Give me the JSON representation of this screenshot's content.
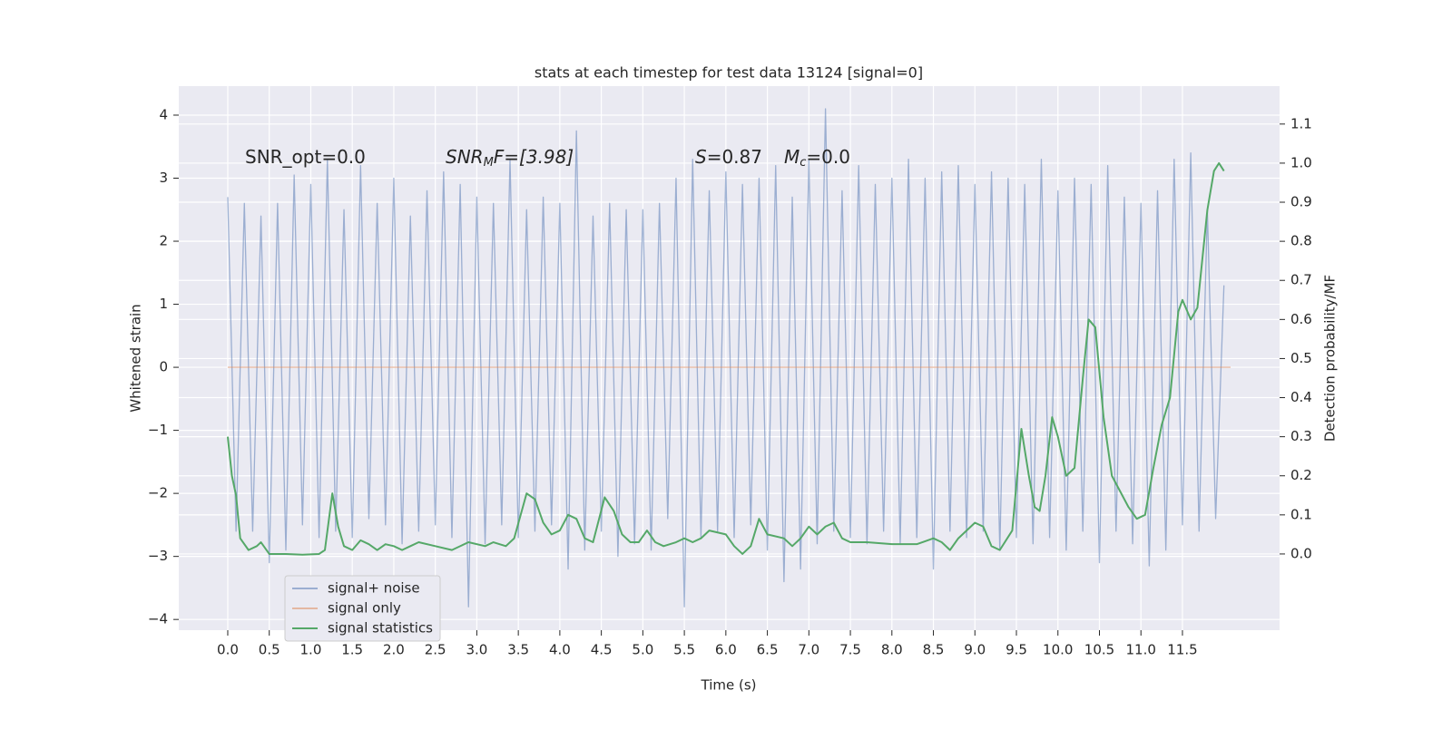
{
  "chart_data": {
    "type": "line",
    "title": "stats at each timestep for test data 13124 [signal=0]",
    "xlabel": "Time (s)",
    "ylabel": "Whitened strain",
    "y2label": "Detection probability/MF",
    "annotations": [
      [
        "SNR_opt=0.0"
      ],
      [
        "SNR",
        "M",
        "F=[3.98]"
      ],
      [
        "S",
        "=0.87",
        "M",
        "c",
        "=0.0"
      ]
    ],
    "xlim": [
      -0.59,
      12.67
    ],
    "ylim": [
      -4.17,
      4.46
    ],
    "y2lim": [
      -0.195,
      1.197
    ],
    "xticks": [
      {
        "value": 0,
        "label": "0.0"
      },
      {
        "value": 0.5,
        "label": "0.5"
      },
      {
        "value": 1,
        "label": "1.0"
      },
      {
        "value": 1.5,
        "label": "1.5"
      },
      {
        "value": 2,
        "label": "2.0"
      },
      {
        "value": 2.5,
        "label": "2.5"
      },
      {
        "value": 3,
        "label": "3.0"
      },
      {
        "value": 3.5,
        "label": "3.5"
      },
      {
        "value": 4,
        "label": "4.0"
      },
      {
        "value": 4.5,
        "label": "4.5"
      },
      {
        "value": 5,
        "label": "5.0"
      },
      {
        "value": 5.5,
        "label": "5.5"
      },
      {
        "value": 6,
        "label": "6.0"
      },
      {
        "value": 6.5,
        "label": "6.5"
      },
      {
        "value": 7,
        "label": "7.0"
      },
      {
        "value": 7.5,
        "label": "7.5"
      },
      {
        "value": 8,
        "label": "8.0"
      },
      {
        "value": 8.5,
        "label": "8.5"
      },
      {
        "value": 9,
        "label": "9.0"
      },
      {
        "value": 9.5,
        "label": "9.5"
      },
      {
        "value": 10,
        "label": "10.0"
      },
      {
        "value": 10.5,
        "label": "10.5"
      },
      {
        "value": 11,
        "label": "11.0"
      },
      {
        "value": 11.5,
        "label": "11.5"
      }
    ],
    "yticks": [
      {
        "value": -4,
        "label": "−4"
      },
      {
        "value": -3,
        "label": "−3"
      },
      {
        "value": -2,
        "label": "−2"
      },
      {
        "value": -1,
        "label": "−1"
      },
      0,
      1,
      2,
      3,
      4
    ],
    "y2ticks": [
      {
        "value": 0,
        "label": "0.0"
      },
      {
        "value": 0.1,
        "label": "0.1"
      },
      {
        "value": 0.2,
        "label": "0.2"
      },
      {
        "value": 0.3,
        "label": "0.3"
      },
      {
        "value": 0.4,
        "label": "0.4"
      },
      {
        "value": 0.5,
        "label": "0.5"
      },
      {
        "value": 0.6,
        "label": "0.6"
      },
      {
        "value": 0.7,
        "label": "0.7"
      },
      {
        "value": 0.8,
        "label": "0.8"
      },
      {
        "value": 0.9,
        "label": "0.9"
      },
      {
        "value": 1,
        "label": "1.0"
      },
      {
        "value": 1.1,
        "label": "1.1"
      }
    ],
    "grid": true,
    "legend_loc": "lower left",
    "series": [
      {
        "name": "signal+ noise",
        "color": "#4c72b0",
        "alpha": 0.5,
        "axis": "y",
        "x": [
          0,
          0.1,
          0.2,
          0.3,
          0.4,
          0.5,
          0.6,
          0.7,
          0.8,
          0.9,
          1,
          1.1,
          1.2,
          1.3,
          1.4,
          1.5,
          1.6,
          1.7,
          1.8,
          1.9,
          2,
          2.1,
          2.2,
          2.3,
          2.4,
          2.5,
          2.6,
          2.7,
          2.8,
          2.9,
          3,
          3.1,
          3.2,
          3.3,
          3.4,
          3.5,
          3.6,
          3.7,
          3.8,
          3.9,
          4,
          4.1,
          4.2,
          4.3,
          4.4,
          4.5,
          4.6,
          4.7,
          4.8,
          4.9,
          5,
          5.1,
          5.2,
          5.3,
          5.4,
          5.5,
          5.6,
          5.7,
          5.8,
          5.9,
          6,
          6.1,
          6.2,
          6.3,
          6.4,
          6.5,
          6.6,
          6.7,
          6.8,
          6.9,
          7,
          7.1,
          7.2,
          7.3,
          7.4,
          7.5,
          7.6,
          7.7,
          7.8,
          7.9,
          8,
          8.1,
          8.2,
          8.3,
          8.4,
          8.5,
          8.6,
          8.7,
          8.8,
          8.9,
          9,
          9.1,
          9.2,
          9.3,
          9.4,
          9.5,
          9.6,
          9.7,
          9.8,
          9.9,
          10,
          10.1,
          10.2,
          10.3,
          10.4,
          10.5,
          10.6,
          10.7,
          10.8,
          10.9,
          11,
          11.1,
          11.2,
          11.3,
          11.4,
          11.5,
          11.6,
          11.7,
          11.8,
          11.9,
          12
        ],
        "values": [
          2.7,
          -2.6,
          2.6,
          -2.6,
          2.4,
          -3.1,
          2.6,
          -2.9,
          3.05,
          -2.5,
          2.9,
          -2.7,
          3.3,
          -2.6,
          2.5,
          -2.7,
          3.2,
          -2.4,
          2.6,
          -2.5,
          3.0,
          -2.8,
          2.4,
          -2.6,
          2.8,
          -2.5,
          3.1,
          -2.7,
          2.9,
          -3.8,
          2.7,
          -2.8,
          2.6,
          -2.5,
          3.3,
          -2.7,
          2.5,
          -2.6,
          2.7,
          -2.5,
          2.6,
          -3.2,
          3.75,
          -2.9,
          2.4,
          -2.6,
          2.6,
          -3.0,
          2.5,
          -2.8,
          2.5,
          -2.9,
          2.6,
          -2.4,
          3.0,
          -3.8,
          3.3,
          -2.7,
          2.8,
          -2.6,
          3.1,
          -2.7,
          2.9,
          -2.5,
          3.0,
          -2.9,
          3.2,
          -3.4,
          2.7,
          -3.2,
          3.3,
          -2.8,
          4.1,
          -2.6,
          2.8,
          -2.7,
          3.2,
          -2.8,
          2.9,
          -2.6,
          3.0,
          -2.8,
          3.3,
          -2.7,
          3.0,
          -3.2,
          3.1,
          -2.6,
          3.2,
          -2.7,
          2.9,
          -2.6,
          3.1,
          -2.9,
          3.0,
          -2.7,
          2.9,
          -2.8,
          3.3,
          -2.7,
          2.8,
          -2.9,
          3.0,
          -2.6,
          2.9,
          -3.1,
          3.2,
          -2.6,
          2.7,
          -2.8,
          2.6,
          -3.15,
          2.8,
          -2.9,
          3.3,
          -2.5,
          3.4,
          -2.6,
          2.5,
          -2.4,
          1.3
        ]
      },
      {
        "name": "signal only",
        "color": "#dd8452",
        "alpha": 0.5,
        "axis": "y",
        "x": [
          0,
          12.08
        ],
        "values": [
          0,
          0
        ]
      },
      {
        "name": "signal statistics",
        "color": "#55a868",
        "alpha": 1,
        "axis": "y2",
        "x": [
          0,
          0.05,
          0.1,
          0.15,
          0.25,
          0.35,
          0.4,
          0.5,
          0.7,
          0.9,
          1.1,
          1.17,
          1.26,
          1.33,
          1.4,
          1.5,
          1.6,
          1.7,
          1.8,
          1.9,
          2.0,
          2.1,
          2.2,
          2.3,
          2.5,
          2.7,
          2.9,
          3.1,
          3.2,
          3.35,
          3.45,
          3.6,
          3.7,
          3.8,
          3.9,
          4.0,
          4.1,
          4.2,
          4.3,
          4.4,
          4.54,
          4.65,
          4.75,
          4.85,
          4.95,
          5.05,
          5.15,
          5.25,
          5.4,
          5.5,
          5.6,
          5.7,
          5.8,
          6.0,
          6.1,
          6.2,
          6.3,
          6.4,
          6.5,
          6.7,
          6.8,
          6.9,
          7.0,
          7.1,
          7.2,
          7.3,
          7.4,
          7.5,
          7.7,
          8.0,
          8.3,
          8.5,
          8.6,
          8.7,
          8.8,
          9.0,
          9.1,
          9.2,
          9.3,
          9.45,
          9.56,
          9.65,
          9.72,
          9.78,
          9.85,
          9.93,
          10.0,
          10.1,
          10.2,
          10.3,
          10.37,
          10.45,
          10.55,
          10.65,
          10.75,
          10.85,
          10.95,
          11.05,
          11.15,
          11.25,
          11.35,
          11.45,
          11.5,
          11.6,
          11.68,
          11.8,
          11.88,
          11.94,
          12.0
        ],
        "values": [
          0.3,
          0.2,
          0.15,
          0.04,
          0.01,
          0.02,
          0.03,
          0.0,
          0.0,
          -0.002,
          0.0,
          0.01,
          0.155,
          0.07,
          0.02,
          0.01,
          0.035,
          0.025,
          0.01,
          0.025,
          0.02,
          0.01,
          0.02,
          0.03,
          0.02,
          0.01,
          0.03,
          0.02,
          0.03,
          0.02,
          0.04,
          0.155,
          0.14,
          0.08,
          0.05,
          0.06,
          0.1,
          0.09,
          0.04,
          0.03,
          0.145,
          0.11,
          0.05,
          0.03,
          0.03,
          0.06,
          0.03,
          0.02,
          0.03,
          0.04,
          0.03,
          0.04,
          0.06,
          0.05,
          0.02,
          0.0,
          0.02,
          0.09,
          0.05,
          0.04,
          0.02,
          0.04,
          0.07,
          0.05,
          0.07,
          0.08,
          0.04,
          0.03,
          0.03,
          0.025,
          0.025,
          0.04,
          0.03,
          0.01,
          0.04,
          0.08,
          0.07,
          0.02,
          0.01,
          0.06,
          0.32,
          0.2,
          0.12,
          0.11,
          0.2,
          0.35,
          0.3,
          0.2,
          0.22,
          0.45,
          0.6,
          0.58,
          0.35,
          0.2,
          0.16,
          0.12,
          0.09,
          0.1,
          0.22,
          0.33,
          0.4,
          0.62,
          0.65,
          0.6,
          0.63,
          0.88,
          0.98,
          1.0,
          0.98
        ]
      }
    ]
  }
}
